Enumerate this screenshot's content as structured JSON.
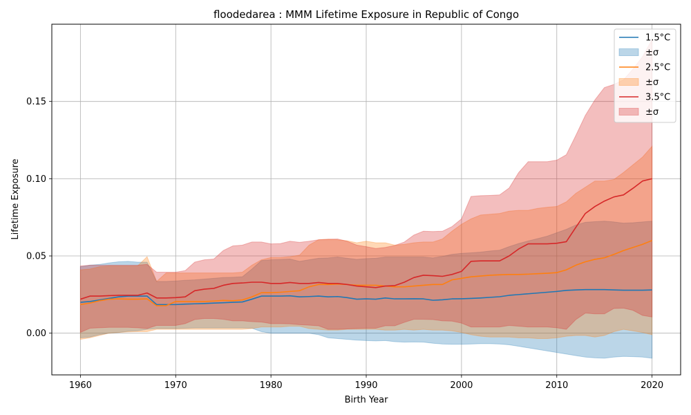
{
  "chart_data": {
    "type": "line",
    "title": "floodedarea : MMM Lifetime Exposure in Republic of Congo",
    "xlabel": "Birth Year",
    "ylabel": "Lifetime Exposure",
    "xlim": [
      1957,
      2023
    ],
    "ylim": [
      -0.027,
      0.2
    ],
    "xticks": [
      1960,
      1970,
      1980,
      1990,
      2000,
      2010,
      2020
    ],
    "xtick_labels": [
      "1960",
      "1970",
      "1980",
      "1990",
      "2000",
      "2010",
      "2020"
    ],
    "yticks": [
      0.0,
      0.05,
      0.1,
      0.15
    ],
    "ytick_labels": [
      "0.00",
      "0.05",
      "0.10",
      "0.15"
    ],
    "grid": true,
    "legend_position": "top-right",
    "x": [
      1960,
      1961,
      1962,
      1963,
      1964,
      1965,
      1966,
      1967,
      1968,
      1969,
      1970,
      1971,
      1972,
      1973,
      1974,
      1975,
      1976,
      1977,
      1978,
      1979,
      1980,
      1981,
      1982,
      1983,
      1984,
      1985,
      1986,
      1987,
      1988,
      1989,
      1990,
      1991,
      1992,
      1993,
      1994,
      1995,
      1996,
      1997,
      1998,
      1999,
      2000,
      2001,
      2002,
      2003,
      2004,
      2005,
      2006,
      2007,
      2008,
      2009,
      2010,
      2011,
      2012,
      2013,
      2014,
      2015,
      2016,
      2017,
      2018,
      2019,
      2020
    ],
    "series": [
      {
        "name": "1.5°C",
        "band_name": "±σ",
        "color": "#1f77b4",
        "fill_color": "#1f77b4",
        "mean": [
          0.02,
          0.0205,
          0.0215,
          0.0225,
          0.0235,
          0.024,
          0.024,
          0.024,
          0.0185,
          0.0185,
          0.0185,
          0.0188,
          0.019,
          0.0192,
          0.0195,
          0.0197,
          0.02,
          0.0202,
          0.022,
          0.024,
          0.024,
          0.024,
          0.0242,
          0.0235,
          0.0237,
          0.024,
          0.0235,
          0.0237,
          0.023,
          0.022,
          0.0222,
          0.022,
          0.0228,
          0.0222,
          0.0222,
          0.0223,
          0.0222,
          0.0213,
          0.0216,
          0.0222,
          0.0223,
          0.0225,
          0.0228,
          0.0232,
          0.0236,
          0.0245,
          0.025,
          0.0255,
          0.026,
          0.0265,
          0.027,
          0.0277,
          0.028,
          0.0282,
          0.0282,
          0.0282,
          0.028,
          0.0278,
          0.0278,
          0.0278,
          0.028
        ],
        "upper": [
          0.043,
          0.044,
          0.0445,
          0.0455,
          0.0462,
          0.0465,
          0.046,
          0.046,
          0.0335,
          0.0335,
          0.0338,
          0.0342,
          0.0345,
          0.035,
          0.0355,
          0.036,
          0.0362,
          0.0365,
          0.0415,
          0.047,
          0.0475,
          0.0477,
          0.048,
          0.0465,
          0.0475,
          0.0485,
          0.0487,
          0.0493,
          0.0485,
          0.0478,
          0.0483,
          0.0485,
          0.0493,
          0.0493,
          0.0493,
          0.0493,
          0.0493,
          0.0487,
          0.0497,
          0.051,
          0.0517,
          0.052,
          0.0525,
          0.0532,
          0.0537,
          0.056,
          0.058,
          0.0597,
          0.0612,
          0.0628,
          0.065,
          0.0672,
          0.07,
          0.0718,
          0.0722,
          0.0725,
          0.072,
          0.0712,
          0.0715,
          0.072,
          0.0725
        ],
        "lower": [
          -0.003,
          -0.0025,
          -0.001,
          0.0,
          0.0005,
          0.0012,
          0.0015,
          0.0025,
          0.003,
          0.003,
          0.003,
          0.0032,
          0.0034,
          0.0034,
          0.0034,
          0.0034,
          0.0034,
          0.0034,
          0.0032,
          0.001,
          0.0,
          0.0,
          0.0,
          0.0,
          0.0,
          -0.001,
          -0.003,
          -0.0035,
          -0.004,
          -0.0045,
          -0.0048,
          -0.005,
          -0.0048,
          -0.0055,
          -0.0058,
          -0.0057,
          -0.0058,
          -0.0065,
          -0.007,
          -0.0072,
          -0.0072,
          -0.007,
          -0.0068,
          -0.0068,
          -0.007,
          -0.0075,
          -0.0085,
          -0.0095,
          -0.0105,
          -0.0115,
          -0.0125,
          -0.0135,
          -0.0145,
          -0.0155,
          -0.016,
          -0.0162,
          -0.0155,
          -0.015,
          -0.0152,
          -0.0155,
          -0.0162
        ]
      },
      {
        "name": "2.5°C",
        "band_name": "±σ",
        "color": "#ff7f0e",
        "fill_color": "#ff7f0e",
        "mean": [
          0.0185,
          0.0195,
          0.021,
          0.022,
          0.0222,
          0.022,
          0.022,
          0.0222,
          0.0178,
          0.0178,
          0.0205,
          0.0205,
          0.0205,
          0.0205,
          0.0208,
          0.0212,
          0.021,
          0.0215,
          0.0235,
          0.0262,
          0.0262,
          0.0265,
          0.027,
          0.0275,
          0.03,
          0.0315,
          0.0315,
          0.0318,
          0.0315,
          0.031,
          0.031,
          0.031,
          0.0305,
          0.03,
          0.03,
          0.0305,
          0.031,
          0.0315,
          0.0315,
          0.0345,
          0.0355,
          0.0365,
          0.037,
          0.0375,
          0.0378,
          0.038,
          0.038,
          0.0382,
          0.0385,
          0.0388,
          0.0392,
          0.041,
          0.044,
          0.0462,
          0.0478,
          0.0488,
          0.051,
          0.0535,
          0.0555,
          0.0575,
          0.06
        ],
        "upper": [
          0.041,
          0.0415,
          0.043,
          0.0435,
          0.0435,
          0.0435,
          0.0435,
          0.0495,
          0.0335,
          0.039,
          0.039,
          0.039,
          0.039,
          0.039,
          0.039,
          0.039,
          0.039,
          0.0395,
          0.044,
          0.0475,
          0.049,
          0.049,
          0.0495,
          0.0505,
          0.057,
          0.0605,
          0.0608,
          0.0605,
          0.0598,
          0.0585,
          0.0595,
          0.0585,
          0.0585,
          0.057,
          0.0575,
          0.0585,
          0.059,
          0.059,
          0.061,
          0.066,
          0.0705,
          0.074,
          0.0765,
          0.077,
          0.0775,
          0.079,
          0.0795,
          0.0795,
          0.0808,
          0.0815,
          0.082,
          0.085,
          0.0905,
          0.0945,
          0.0985,
          0.0985,
          0.0995,
          0.104,
          0.109,
          0.114,
          0.121
        ],
        "lower": [
          -0.004,
          -0.003,
          -0.0015,
          0.0,
          0.0005,
          0.0008,
          0.001,
          0.001,
          0.0025,
          0.0025,
          0.0025,
          0.0025,
          0.0025,
          0.0025,
          0.0025,
          0.0025,
          0.0025,
          0.0025,
          0.003,
          0.004,
          0.004,
          0.004,
          0.0045,
          0.0045,
          0.003,
          0.0025,
          0.002,
          0.002,
          0.0025,
          0.0025,
          0.0025,
          0.0025,
          0.002,
          0.002,
          0.0025,
          0.002,
          0.0025,
          0.002,
          0.002,
          0.0015,
          0.0005,
          -0.001,
          -0.002,
          -0.0025,
          -0.0025,
          -0.0025,
          -0.003,
          -0.003,
          -0.0035,
          -0.0035,
          -0.003,
          -0.002,
          -0.0015,
          -0.0015,
          -0.0025,
          -0.0015,
          0.001,
          0.0025,
          0.0015,
          0.0005,
          -0.001
        ]
      },
      {
        "name": "3.5°C",
        "band_name": "±σ",
        "color": "#d62728",
        "fill_color": "#d62728",
        "mean": [
          0.022,
          0.024,
          0.024,
          0.0243,
          0.0245,
          0.0245,
          0.0245,
          0.026,
          0.0228,
          0.0228,
          0.023,
          0.0235,
          0.0275,
          0.0285,
          0.029,
          0.031,
          0.0322,
          0.0325,
          0.033,
          0.033,
          0.0322,
          0.0322,
          0.0328,
          0.0322,
          0.0322,
          0.0328,
          0.0322,
          0.0322,
          0.0315,
          0.0305,
          0.03,
          0.0295,
          0.0305,
          0.0308,
          0.033,
          0.036,
          0.0375,
          0.0372,
          0.0368,
          0.038,
          0.04,
          0.0465,
          0.0468,
          0.0468,
          0.0468,
          0.05,
          0.0545,
          0.0578,
          0.0578,
          0.0578,
          0.0582,
          0.0592,
          0.0685,
          0.0775,
          0.082,
          0.0855,
          0.0882,
          0.0895,
          0.0938,
          0.0985,
          0.1
        ],
        "upper": [
          0.0435,
          0.044,
          0.044,
          0.044,
          0.044,
          0.044,
          0.044,
          0.0445,
          0.0395,
          0.0395,
          0.0395,
          0.0405,
          0.046,
          0.0475,
          0.048,
          0.0535,
          0.0565,
          0.057,
          0.059,
          0.059,
          0.0578,
          0.058,
          0.0595,
          0.0588,
          0.0595,
          0.0605,
          0.0608,
          0.061,
          0.0595,
          0.057,
          0.056,
          0.0548,
          0.0555,
          0.0568,
          0.059,
          0.0635,
          0.066,
          0.0658,
          0.066,
          0.069,
          0.074,
          0.0885,
          0.089,
          0.0892,
          0.0895,
          0.094,
          0.104,
          0.111,
          0.111,
          0.111,
          0.112,
          0.1155,
          0.128,
          0.141,
          0.151,
          0.159,
          0.161,
          0.164,
          0.171,
          0.179,
          0.19
        ],
        "lower": [
          0.0005,
          0.0032,
          0.0035,
          0.0038,
          0.0038,
          0.0038,
          0.0035,
          0.003,
          0.005,
          0.005,
          0.005,
          0.0062,
          0.0088,
          0.0095,
          0.0095,
          0.009,
          0.008,
          0.008,
          0.0075,
          0.0072,
          0.0062,
          0.0062,
          0.006,
          0.0055,
          0.0052,
          0.0048,
          0.0025,
          0.0025,
          0.0028,
          0.003,
          0.0032,
          0.0032,
          0.0048,
          0.0048,
          0.007,
          0.009,
          0.009,
          0.0088,
          0.008,
          0.0078,
          0.0065,
          0.004,
          0.004,
          0.004,
          0.004,
          0.005,
          0.0045,
          0.004,
          0.004,
          0.004,
          0.0035,
          0.0025,
          0.0088,
          0.013,
          0.0125,
          0.0125,
          0.016,
          0.0162,
          0.0148,
          0.0115,
          0.0105
        ]
      }
    ]
  }
}
